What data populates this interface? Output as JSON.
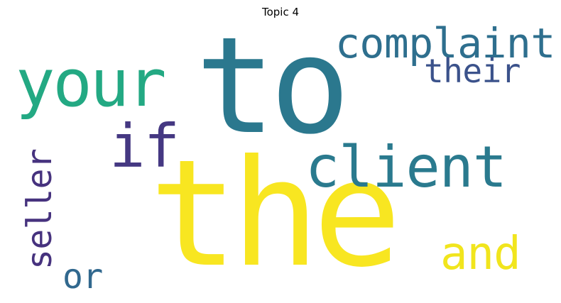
{
  "title": "Topic 4",
  "words": [
    {
      "key": "the",
      "text": "the",
      "color": "#f8e621"
    },
    {
      "key": "to",
      "text": "to",
      "color": "#2b788e"
    },
    {
      "key": "client",
      "text": "client",
      "color": "#2a7a8e"
    },
    {
      "key": "your",
      "text": "your",
      "color": "#23a983"
    },
    {
      "key": "complaint",
      "text": "complaint",
      "color": "#2e6f8e"
    },
    {
      "key": "if",
      "text": "if",
      "color": "#453882"
    },
    {
      "key": "and",
      "text": "and",
      "color": "#f1e51d"
    },
    {
      "key": "their",
      "text": "their",
      "color": "#3b528b"
    },
    {
      "key": "seller",
      "text": "seller",
      "color": "#46327e"
    },
    {
      "key": "or",
      "text": "or",
      "color": "#31688e"
    }
  ]
}
